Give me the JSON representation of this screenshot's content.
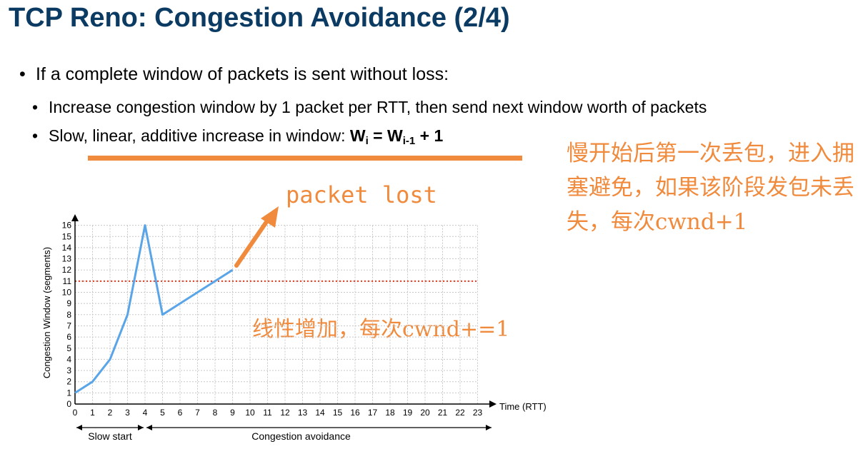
{
  "title": "TCP Reno: Congestion Avoidance (2/4)",
  "bullets": [
    {
      "level": 1,
      "text": "If a complete window of packets is sent without loss:"
    },
    {
      "level": 2,
      "text": "Increase congestion window by 1 packet per RTT, then send next window worth of packets"
    },
    {
      "level": 2,
      "text": "Slow, linear, additive increase in window: "
    }
  ],
  "formula": {
    "w": "W",
    "sub_i": "i",
    "equals": " = ",
    "sub_prev": "i-1",
    "plus": " + 1"
  },
  "annotations": {
    "right_note": "慢开始后第一次丢包，进入拥塞避免，如果该阶段发包未丢失，每次cwnd+1",
    "packet_lost": "packet lost",
    "linear_note": "线性增加，每次cwnd+=1"
  },
  "colors": {
    "title": "#0b3b62",
    "annotation": "#f08a3c",
    "series": "#5aa5e8",
    "threshold": "#e23a1e",
    "grid": "#c8c8c8"
  },
  "chart_data": {
    "type": "line",
    "xlabel": "Time (RTT)",
    "ylabel": "Congestion Window (segments)",
    "xlim": [
      0,
      23
    ],
    "ylim": [
      0,
      16
    ],
    "x_ticks": [
      0,
      1,
      2,
      3,
      4,
      5,
      6,
      7,
      8,
      9,
      10,
      11,
      12,
      13,
      14,
      15,
      16,
      17,
      18,
      19,
      20,
      21,
      22,
      23
    ],
    "y_ticks": [
      0,
      1,
      2,
      3,
      4,
      5,
      6,
      7,
      8,
      9,
      10,
      11,
      12,
      13,
      14,
      15,
      16
    ],
    "grid": true,
    "series": [
      {
        "x": [
          0,
          1,
          2,
          3,
          4,
          5,
          9
        ],
        "y": [
          1,
          2,
          4,
          8,
          16,
          8,
          12
        ]
      }
    ],
    "threshold": {
      "y": 11,
      "style": "dotted"
    },
    "phases": [
      {
        "label": "Slow start",
        "from": 0,
        "to": 4
      },
      {
        "label": "Congestion avoidance",
        "from": 4,
        "to": 24
      }
    ]
  }
}
